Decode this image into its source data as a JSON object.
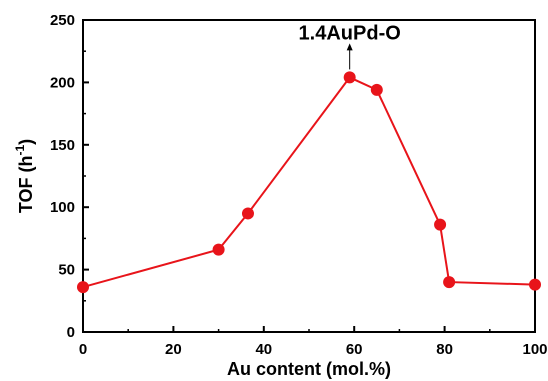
{
  "chart_data": {
    "type": "line",
    "title": "",
    "xlabel": "Au content (mol.%)",
    "ylabel_main": "TOF (h",
    "ylabel_sup": "-1",
    "ylabel_close": ")",
    "xlim": [
      0,
      100
    ],
    "ylim": [
      0,
      250
    ],
    "xticks": [
      0,
      20,
      40,
      60,
      80,
      100
    ],
    "yticks": [
      0,
      50,
      100,
      150,
      200,
      250
    ],
    "grid": false,
    "series": [
      {
        "color": "#e8141a",
        "x": [
          0,
          30,
          36.5,
          59,
          65,
          79,
          81,
          100
        ],
        "y": [
          36,
          66,
          95,
          204,
          194,
          86,
          40,
          38
        ]
      }
    ],
    "annotations": [
      {
        "text": "1.4AuPd-O",
        "x": 59,
        "y": 204
      }
    ]
  }
}
